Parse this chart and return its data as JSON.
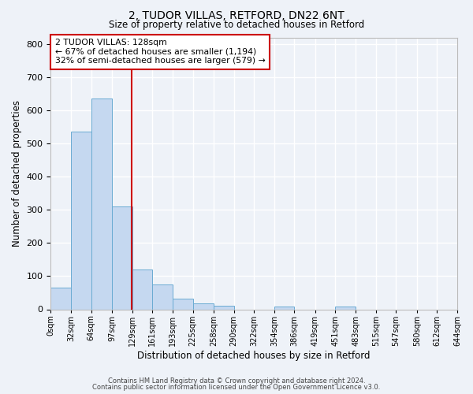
{
  "title_line1": "2, TUDOR VILLAS, RETFORD, DN22 6NT",
  "title_line2": "Size of property relative to detached houses in Retford",
  "xlabel": "Distribution of detached houses by size in Retford",
  "ylabel": "Number of detached properties",
  "bin_edges": [
    0,
    32,
    64,
    97,
    129,
    161,
    193,
    225,
    258,
    290,
    322,
    354,
    386,
    419,
    451,
    483,
    515,
    547,
    580,
    612,
    644
  ],
  "bin_labels": [
    "0sqm",
    "32sqm",
    "64sqm",
    "97sqm",
    "129sqm",
    "161sqm",
    "193sqm",
    "225sqm",
    "258sqm",
    "290sqm",
    "322sqm",
    "354sqm",
    "386sqm",
    "419sqm",
    "451sqm",
    "483sqm",
    "515sqm",
    "547sqm",
    "580sqm",
    "612sqm",
    "644sqm"
  ],
  "bar_heights": [
    65,
    535,
    635,
    310,
    120,
    75,
    32,
    18,
    10,
    0,
    0,
    8,
    0,
    0,
    8,
    0,
    0,
    0,
    0,
    0
  ],
  "bar_color": "#c5d8f0",
  "bar_edge_color": "#6aabd2",
  "vline_x": 128,
  "vline_color": "#cc0000",
  "ylim": [
    0,
    820
  ],
  "yticks": [
    0,
    100,
    200,
    300,
    400,
    500,
    600,
    700,
    800
  ],
  "annotation_title": "2 TUDOR VILLAS: 128sqm",
  "annotation_line1": "← 67% of detached houses are smaller (1,194)",
  "annotation_line2": "32% of semi-detached houses are larger (579) →",
  "annotation_box_color": "#ffffff",
  "annotation_box_edge": "#cc0000",
  "footer_line1": "Contains HM Land Registry data © Crown copyright and database right 2024.",
  "footer_line2": "Contains public sector information licensed under the Open Government Licence v3.0.",
  "background_color": "#eef2f8",
  "grid_color": "#ffffff",
  "fig_width": 6.0,
  "fig_height": 5.0,
  "fig_dpi": 100
}
